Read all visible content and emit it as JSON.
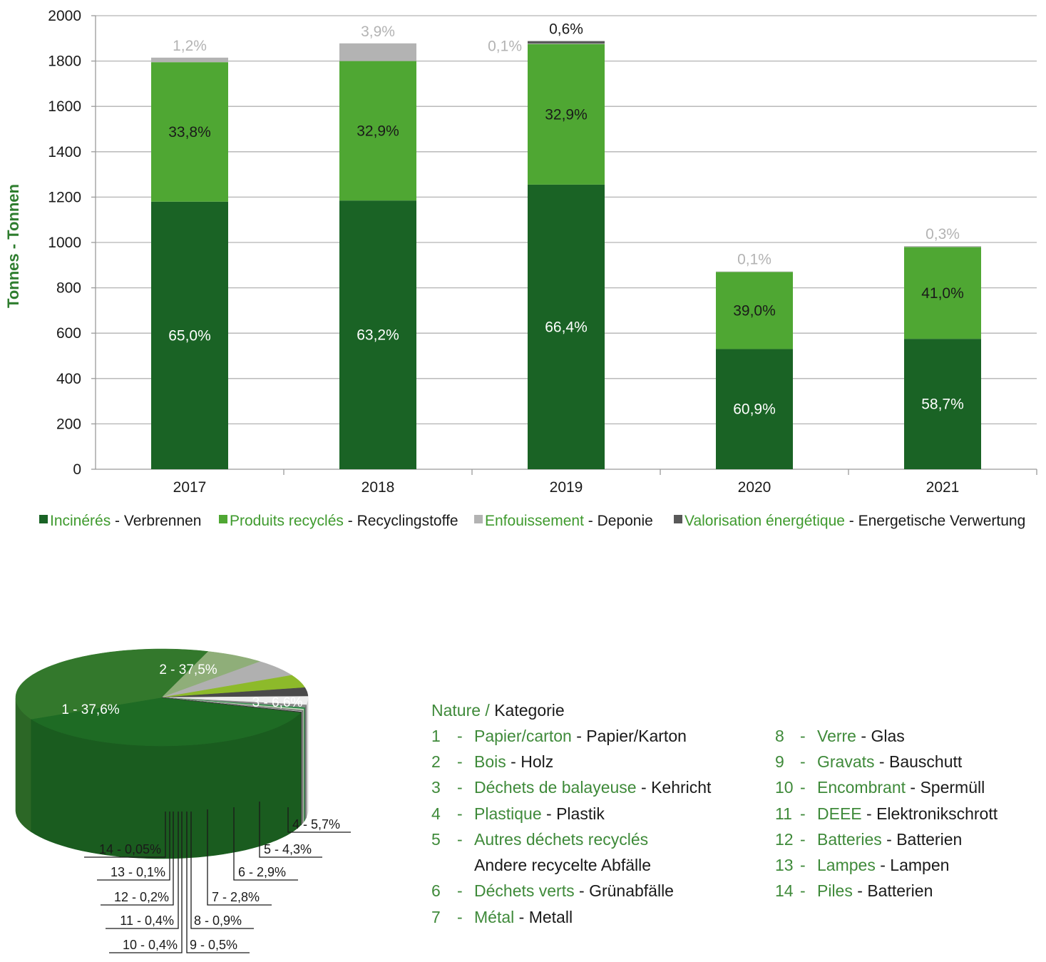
{
  "chart_data": [
    {
      "type": "bar",
      "stacked": true,
      "ylabel": "Tonnes - Tonnen",
      "ylim": [
        0,
        2000
      ],
      "yticks": [
        0,
        200,
        400,
        600,
        800,
        1000,
        1200,
        1400,
        1600,
        1800,
        2000
      ],
      "grid": true,
      "legend_position": "bottom",
      "categories": [
        "2017",
        "2018",
        "2019",
        "2020",
        "2021"
      ],
      "series": [
        {
          "name_fr": "Incinérés",
          "name_de": "Verbrennen",
          "color": "#1a6325",
          "values": [
            1180,
            1185,
            1255,
            530,
            575
          ],
          "labels": [
            "65,0%",
            "63,2%",
            "66,4%",
            "60,9%",
            "58,7%"
          ],
          "label_color": "#ffffff"
        },
        {
          "name_fr": "Produits recyclés",
          "name_de": "Recyclingstoffe",
          "color": "#4fa733",
          "values": [
            615,
            615,
            620,
            340,
            405
          ],
          "labels": [
            "33,8%",
            "32,9%",
            "32,9%",
            "39,0%",
            "41,0%"
          ],
          "label_color": "#1a1a1a"
        },
        {
          "name_fr": "Enfouissement",
          "name_de": "Deponie",
          "color": "#b3b3b3",
          "values": [
            20,
            78,
            2,
            2,
            4
          ],
          "labels": [
            "1,2%",
            "3,9%",
            "0,1%",
            "0,1%",
            "0,3%"
          ],
          "label_color": "#b3b3b3"
        },
        {
          "name_fr": "Valorisation énergétique",
          "name_de": "Energetische Verwertung",
          "color": "#595959",
          "values": [
            0,
            0,
            11,
            0,
            0
          ],
          "labels": [
            "",
            "",
            "0,6%",
            "",
            ""
          ],
          "label_color": "#1a1a1a"
        }
      ]
    },
    {
      "type": "pie",
      "title_fr": "Nature",
      "title_sep": " / ",
      "title_de": "Kategorie",
      "slices": [
        {
          "id": "1",
          "value": 37.6,
          "label": "1 - 37,6%",
          "fr": "Papier/carton",
          "de": "Papier/Karton",
          "color": "#1e6b24"
        },
        {
          "id": "2",
          "value": 37.5,
          "label": "2 - 37,5%",
          "fr": "Bois",
          "de": "Holz",
          "color": "#33782c"
        },
        {
          "id": "3",
          "value": 6.6,
          "label": "3 - 6,6%",
          "fr": "Déchets de balayeuse",
          "de": "Kehricht",
          "color": "#8fae79"
        },
        {
          "id": "4",
          "value": 5.7,
          "label": "4 - 5,7%",
          "fr": "Plastique",
          "de": "Plastik",
          "color": "#b0b0b0"
        },
        {
          "id": "5",
          "value": 4.3,
          "label": "5 - 4,3%",
          "fr": "Autres déchets recyclés",
          "de": "Andere recycelte Abfälle",
          "color": "#8dba2a"
        },
        {
          "id": "6",
          "value": 2.9,
          "label": "6 - 2,9%",
          "fr": "Déchets verts",
          "de": "Grünabfälle",
          "color": "#4a4a4a"
        },
        {
          "id": "7",
          "value": 2.8,
          "label": "7 - 2,8%",
          "fr": "Métal",
          "de": "Metall",
          "color": "#eeeeee"
        },
        {
          "id": "8",
          "value": 0.9,
          "label": "8 - 0,9%",
          "fr": "Verre",
          "de": "Glas",
          "color": "#8a8a8a"
        },
        {
          "id": "9",
          "value": 0.5,
          "label": "9 - 0,5%",
          "fr": "Gravats",
          "de": "Bauschutt",
          "color": "#2e8b4a"
        },
        {
          "id": "10",
          "value": 0.4,
          "label": "10 - 0,4%",
          "fr": "Encombrant",
          "de": "Spermüll",
          "color": "#c6dcbc"
        },
        {
          "id": "11",
          "value": 0.4,
          "label": "11 - 0,4%",
          "fr": "DEEE",
          "de": "Elektronikschrott",
          "color": "#7a7a7a"
        },
        {
          "id": "12",
          "value": 0.2,
          "label": "12 - 0,2%",
          "fr": "Batteries",
          "de": "Batterien",
          "color": "#c8c8c8"
        },
        {
          "id": "13",
          "value": 0.1,
          "label": "13 - 0,1%",
          "fr": "Lampes",
          "de": "Lampen",
          "color": "#111111"
        },
        {
          "id": "14",
          "value": 0.05,
          "label": "14 - 0,05%",
          "fr": "Piles",
          "de": "Batterien",
          "color": "#3d3d3d"
        }
      ]
    }
  ]
}
